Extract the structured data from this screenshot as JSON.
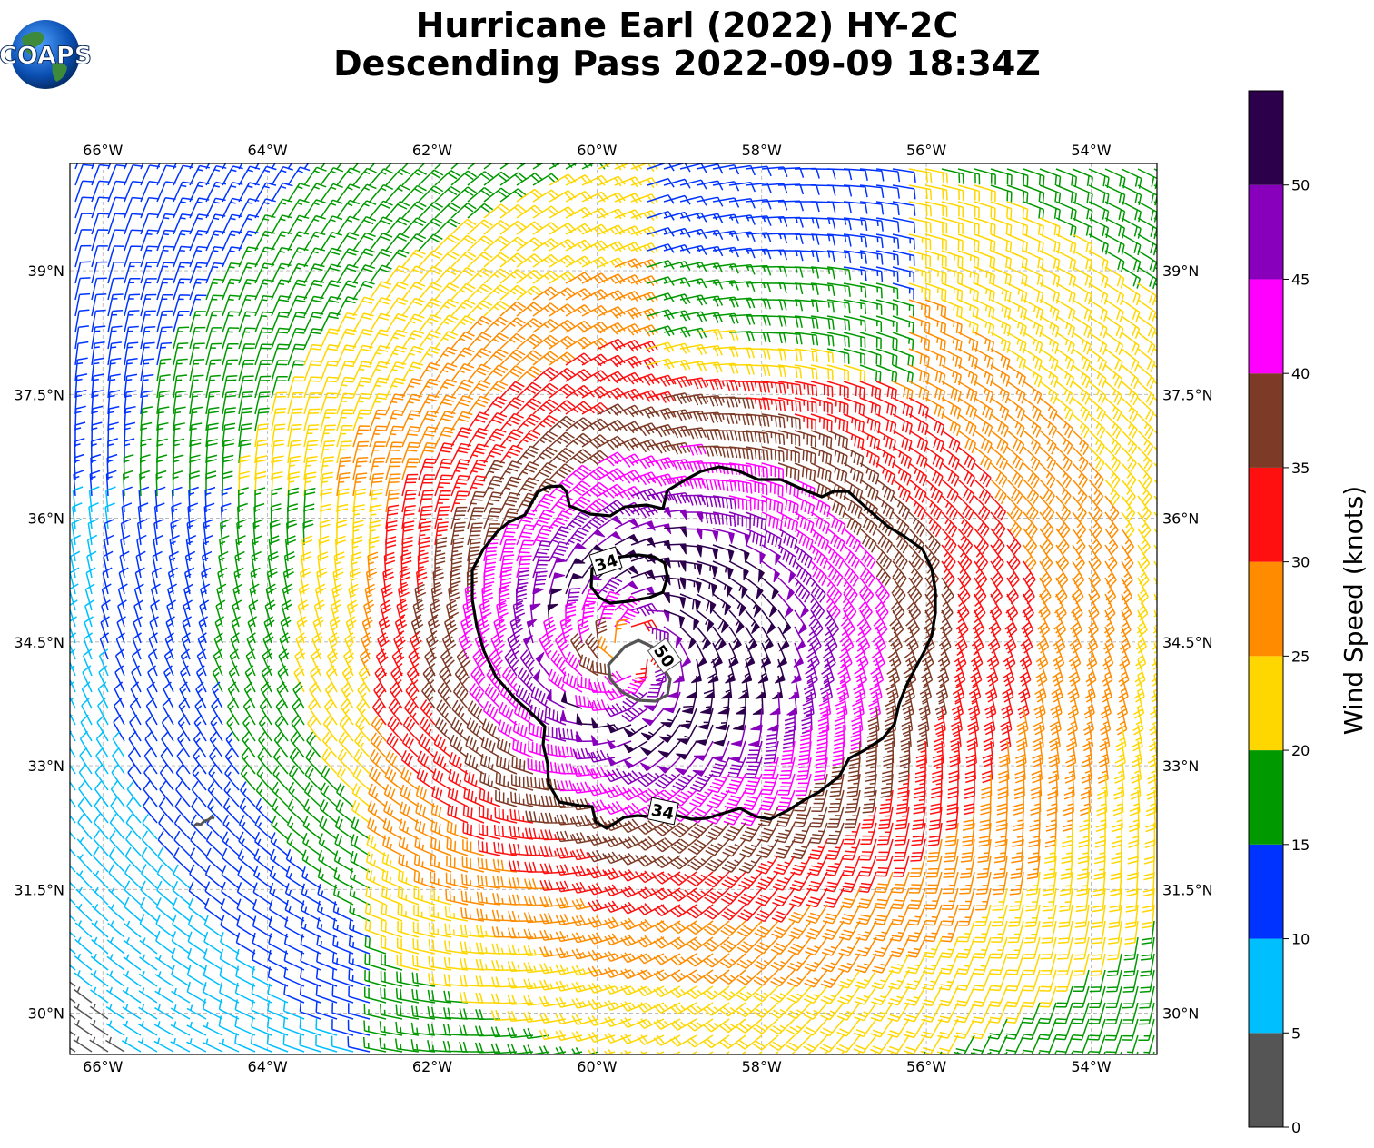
{
  "header": {
    "title_line1": "Hurricane Earl (2022) HY-2C",
    "title_line2": "Descending Pass 2022-09-09 18:34Z",
    "logo_text": "COAPS"
  },
  "map": {
    "lon_range": [
      -66.4,
      -53.2
    ],
    "lat_range": [
      29.5,
      40.3
    ],
    "lon_ticks": [
      {
        "value": -66,
        "label": "66°W"
      },
      {
        "value": -64,
        "label": "64°W"
      },
      {
        "value": -62,
        "label": "62°W"
      },
      {
        "value": -60,
        "label": "60°W"
      },
      {
        "value": -58,
        "label": "58°W"
      },
      {
        "value": -56,
        "label": "56°W"
      },
      {
        "value": -54,
        "label": "54°W"
      }
    ],
    "lat_ticks": [
      {
        "value": 39,
        "label": "39°N"
      },
      {
        "value": 37.5,
        "label": "37.5°N"
      },
      {
        "value": 36,
        "label": "36°N"
      },
      {
        "value": 34.5,
        "label": "34.5°N"
      },
      {
        "value": 33,
        "label": "33°N"
      },
      {
        "value": 31.5,
        "label": "31.5°N"
      },
      {
        "value": 30,
        "label": "30°N"
      }
    ],
    "gridlines": true,
    "storm_center": {
      "lon": -59.6,
      "lat": 34.4
    },
    "contours": [
      {
        "level": "34",
        "color": "#000000"
      },
      {
        "level": "50",
        "color": "#555555"
      }
    ],
    "land": {
      "name": "Bermuda",
      "lon": -64.8,
      "lat": 32.3
    }
  },
  "colorbar": {
    "label": "Wind Speed (knots)",
    "ticks": [
      "0",
      "5",
      "10",
      "15",
      "20",
      "25",
      "30",
      "35",
      "40",
      "45",
      "50"
    ],
    "bins": [
      {
        "min": 0,
        "max": 5,
        "color": "#555555"
      },
      {
        "min": 5,
        "max": 10,
        "color": "#00bfff"
      },
      {
        "min": 10,
        "max": 15,
        "color": "#0033ff"
      },
      {
        "min": 15,
        "max": 20,
        "color": "#009900"
      },
      {
        "min": 20,
        "max": 25,
        "color": "#ffd700"
      },
      {
        "min": 25,
        "max": 30,
        "color": "#ff8c00"
      },
      {
        "min": 30,
        "max": 35,
        "color": "#ff1010"
      },
      {
        "min": 35,
        "max": 40,
        "color": "#7d3a26"
      },
      {
        "min": 40,
        "max": 45,
        "color": "#ff00ff"
      },
      {
        "min": 45,
        "max": 50,
        "color": "#8800bb"
      },
      {
        "min": 50,
        "max": 55,
        "color": "#2d004b"
      }
    ]
  }
}
